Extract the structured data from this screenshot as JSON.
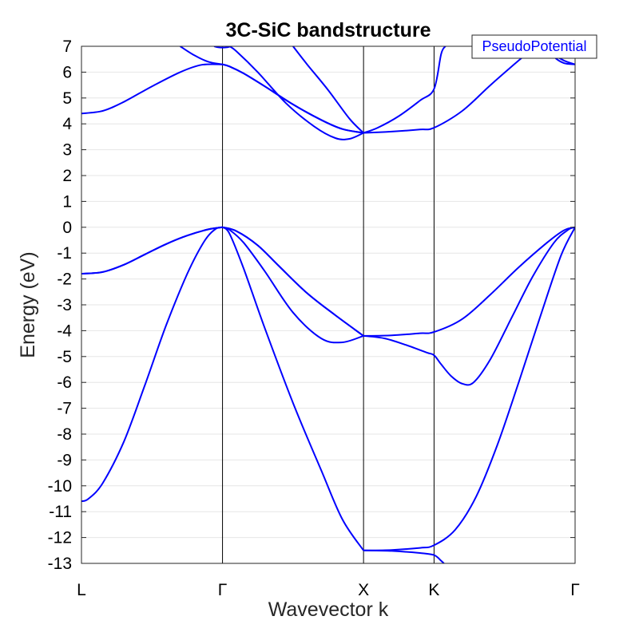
{
  "chart_data": {
    "type": "line",
    "title": "3C-SiC bandstructure",
    "xlabel": "Wavevector k",
    "ylabel": "Energy (eV)",
    "ylim": [
      -13,
      7
    ],
    "xlim": [
      0,
      3.5
    ],
    "yticks": [
      7,
      6,
      5,
      4,
      3,
      2,
      1,
      0,
      -1,
      -2,
      -3,
      -4,
      -5,
      -6,
      -7,
      -8,
      -9,
      -10,
      -11,
      -12,
      -13
    ],
    "ytick_labels": [
      "7",
      "6",
      "5",
      "4",
      "3",
      "2",
      "1",
      "0",
      "-1",
      "-2",
      "-3",
      "-4",
      "-5",
      "-6",
      "-7",
      "-8",
      "-9",
      "-10",
      "-11",
      "-12",
      "-13"
    ],
    "xticks": [
      0,
      1,
      2,
      2.5,
      3.5
    ],
    "xtick_labels": [
      "L",
      "Γ",
      "X",
      "K",
      "Γ"
    ],
    "grid": "horizontal",
    "legend": {
      "position": "top-right",
      "entries": [
        "PseudoPotential"
      ]
    },
    "line_color": "#0000ff",
    "series": [
      {
        "points": [
          [
            0,
            -10.6
          ],
          [
            0.05,
            -10.5
          ],
          [
            0.15,
            -9.9
          ],
          [
            0.3,
            -8.3
          ],
          [
            0.45,
            -6.1
          ],
          [
            0.6,
            -3.8
          ],
          [
            0.75,
            -1.8
          ],
          [
            0.87,
            -0.55
          ],
          [
            0.95,
            -0.07
          ],
          [
            1,
            0
          ]
        ]
      },
      {
        "points": [
          [
            0,
            -1.8
          ],
          [
            0.15,
            -1.73
          ],
          [
            0.3,
            -1.45
          ],
          [
            0.45,
            -1.05
          ],
          [
            0.6,
            -0.65
          ],
          [
            0.75,
            -0.32
          ],
          [
            0.9,
            -0.08
          ],
          [
            1,
            0
          ]
        ]
      },
      {
        "points": [
          [
            0,
            -1.8
          ],
          [
            0.15,
            -1.73
          ],
          [
            0.3,
            -1.45
          ],
          [
            0.45,
            -1.05
          ],
          [
            0.6,
            -0.65
          ],
          [
            0.75,
            -0.32
          ],
          [
            0.9,
            -0.08
          ],
          [
            1,
            0
          ]
        ]
      },
      {
        "points": [
          [
            0,
            4.4
          ],
          [
            0.15,
            4.5
          ],
          [
            0.3,
            4.85
          ],
          [
            0.5,
            5.45
          ],
          [
            0.7,
            6.0
          ],
          [
            0.85,
            6.28
          ],
          [
            1,
            6.3
          ]
        ]
      },
      {
        "points": [
          [
            0.7,
            7.0
          ],
          [
            0.8,
            6.65
          ],
          [
            0.9,
            6.4
          ],
          [
            1,
            6.3
          ]
        ]
      },
      {
        "points": [
          [
            0.94,
            7.0
          ],
          [
            0.97,
            6.96
          ],
          [
            1,
            6.95
          ],
          [
            1.03,
            6.96
          ],
          [
            1.06,
            7.0
          ]
        ]
      },
      {
        "points": [
          [
            1,
            0
          ],
          [
            1.05,
            -0.1
          ],
          [
            1.15,
            -0.6
          ],
          [
            1.3,
            -1.7
          ],
          [
            1.5,
            -3.3
          ],
          [
            1.7,
            -4.3
          ],
          [
            1.85,
            -4.45
          ],
          [
            2,
            -4.2
          ]
        ]
      },
      {
        "points": [
          [
            1,
            0
          ],
          [
            1.1,
            -0.15
          ],
          [
            1.25,
            -0.7
          ],
          [
            1.4,
            -1.5
          ],
          [
            1.6,
            -2.55
          ],
          [
            1.8,
            -3.4
          ],
          [
            2,
            -4.2
          ]
        ]
      },
      {
        "points": [
          [
            1,
            0
          ],
          [
            1.1,
            -0.15
          ],
          [
            1.25,
            -0.7
          ],
          [
            1.4,
            -1.5
          ],
          [
            1.6,
            -2.55
          ],
          [
            1.8,
            -3.4
          ],
          [
            2,
            -4.2
          ]
        ]
      },
      {
        "points": [
          [
            1,
            0
          ],
          [
            1.05,
            -0.25
          ],
          [
            1.15,
            -1.6
          ],
          [
            1.3,
            -3.9
          ],
          [
            1.5,
            -6.8
          ],
          [
            1.7,
            -9.4
          ],
          [
            1.85,
            -11.3
          ],
          [
            2,
            -12.5
          ]
        ]
      },
      {
        "points": [
          [
            1,
            6.3
          ],
          [
            1.05,
            6.22
          ],
          [
            1.15,
            5.95
          ],
          [
            1.3,
            5.45
          ],
          [
            1.5,
            4.75
          ],
          [
            1.7,
            4.15
          ],
          [
            1.85,
            3.8
          ],
          [
            2,
            3.65
          ]
        ]
      },
      {
        "points": [
          [
            1,
            6.3
          ],
          [
            1.05,
            6.22
          ],
          [
            1.15,
            5.95
          ],
          [
            1.3,
            5.45
          ],
          [
            1.5,
            4.75
          ],
          [
            1.7,
            4.15
          ],
          [
            1.85,
            3.8
          ],
          [
            2,
            3.65
          ]
        ]
      },
      {
        "points": [
          [
            1.05,
            7.0
          ],
          [
            1.1,
            6.8
          ],
          [
            1.25,
            6.0
          ],
          [
            1.45,
            4.8
          ],
          [
            1.65,
            3.9
          ],
          [
            1.8,
            3.45
          ],
          [
            1.9,
            3.42
          ],
          [
            2,
            3.65
          ]
        ]
      },
      {
        "points": [
          [
            1.5,
            7.0
          ],
          [
            1.6,
            6.3
          ],
          [
            1.75,
            5.3
          ],
          [
            1.9,
            4.2
          ],
          [
            2,
            3.65
          ]
        ]
      },
      {
        "points": [
          [
            2,
            3.65
          ],
          [
            2.1,
            3.85
          ],
          [
            2.25,
            4.3
          ],
          [
            2.4,
            4.9
          ],
          [
            2.5,
            5.35
          ],
          [
            2.55,
            6.7
          ],
          [
            2.58,
            7.0
          ]
        ]
      },
      {
        "points": [
          [
            2,
            3.65
          ],
          [
            2.2,
            3.7
          ],
          [
            2.4,
            3.78
          ],
          [
            2.5,
            3.85
          ],
          [
            2.7,
            4.5
          ],
          [
            2.9,
            5.5
          ],
          [
            3.1,
            6.45
          ],
          [
            3.2,
            6.9
          ],
          [
            3.23,
            7.0
          ]
        ]
      },
      {
        "points": [
          [
            3.3,
            7.0
          ],
          [
            3.35,
            6.7
          ],
          [
            3.42,
            6.45
          ],
          [
            3.5,
            6.3
          ]
        ]
      },
      {
        "points": [
          [
            3.3,
            7.0
          ],
          [
            3.35,
            6.6
          ],
          [
            3.42,
            6.35
          ],
          [
            3.5,
            6.3
          ]
        ]
      },
      {
        "points": [
          [
            2,
            -4.2
          ],
          [
            2.2,
            -4.18
          ],
          [
            2.4,
            -4.1
          ],
          [
            2.5,
            -4.05
          ],
          [
            2.7,
            -3.55
          ],
          [
            2.9,
            -2.6
          ],
          [
            3.1,
            -1.55
          ],
          [
            3.3,
            -0.6
          ],
          [
            3.42,
            -0.12
          ],
          [
            3.5,
            0
          ]
        ]
      },
      {
        "points": [
          [
            2,
            -4.2
          ],
          [
            2.15,
            -4.3
          ],
          [
            2.3,
            -4.55
          ],
          [
            2.45,
            -4.85
          ],
          [
            2.5,
            -4.95
          ],
          [
            2.55,
            -5.3
          ],
          [
            2.62,
            -5.75
          ],
          [
            2.7,
            -6.05
          ],
          [
            2.78,
            -6.0
          ],
          [
            2.9,
            -5.1
          ],
          [
            3.05,
            -3.5
          ],
          [
            3.2,
            -1.9
          ],
          [
            3.35,
            -0.6
          ],
          [
            3.45,
            -0.1
          ],
          [
            3.5,
            0
          ]
        ]
      },
      {
        "points": [
          [
            2,
            -12.5
          ],
          [
            2.2,
            -12.48
          ],
          [
            2.4,
            -12.4
          ],
          [
            2.5,
            -12.3
          ],
          [
            2.65,
            -11.7
          ],
          [
            2.8,
            -10.4
          ],
          [
            2.95,
            -8.4
          ],
          [
            3.1,
            -6.0
          ],
          [
            3.25,
            -3.5
          ],
          [
            3.4,
            -1.1
          ],
          [
            3.5,
            0
          ]
        ]
      },
      {
        "points": [
          [
            2,
            -12.5
          ],
          [
            2.2,
            -12.52
          ],
          [
            2.4,
            -12.6
          ],
          [
            2.5,
            -12.68
          ],
          [
            2.55,
            -12.9
          ],
          [
            2.57,
            -13.0
          ]
        ]
      }
    ]
  }
}
